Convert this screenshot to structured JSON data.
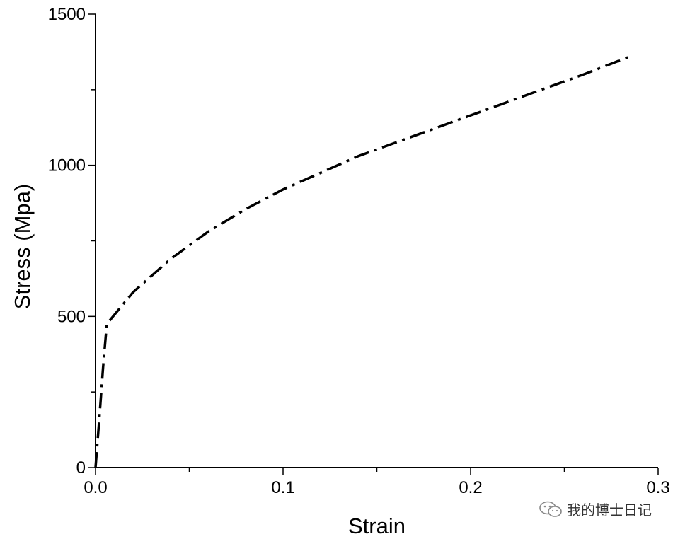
{
  "chart_data": {
    "type": "line",
    "title": "",
    "xlabel": "Strain",
    "ylabel": "Stress (Mpa)",
    "xlim": [
      0,
      0.3
    ],
    "ylim": [
      0,
      1500
    ],
    "x_ticks": [
      0.0,
      0.1,
      0.2,
      0.3
    ],
    "x_tick_labels": [
      "0.0",
      "0.1",
      "0.2",
      "0.3"
    ],
    "y_ticks": [
      0,
      500,
      1000,
      1500
    ],
    "y_tick_labels": [
      "0",
      "500",
      "1000",
      "1500"
    ],
    "grid": false,
    "legend": "none",
    "line_style": "dash-dot",
    "line_color": "#000000",
    "series": [
      {
        "x": [
          0.0,
          0.002,
          0.004,
          0.006,
          0.01,
          0.02,
          0.04,
          0.06,
          0.08,
          0.1,
          0.12,
          0.14,
          0.16,
          0.18,
          0.2,
          0.22,
          0.24,
          0.26,
          0.285
        ],
        "y": [
          0,
          160,
          330,
          475,
          505,
          580,
          690,
          780,
          855,
          920,
          975,
          1030,
          1075,
          1120,
          1165,
          1210,
          1255,
          1300,
          1360
        ]
      }
    ]
  },
  "watermark": {
    "text": "我的博士日记",
    "icon": "wechat-icon"
  }
}
